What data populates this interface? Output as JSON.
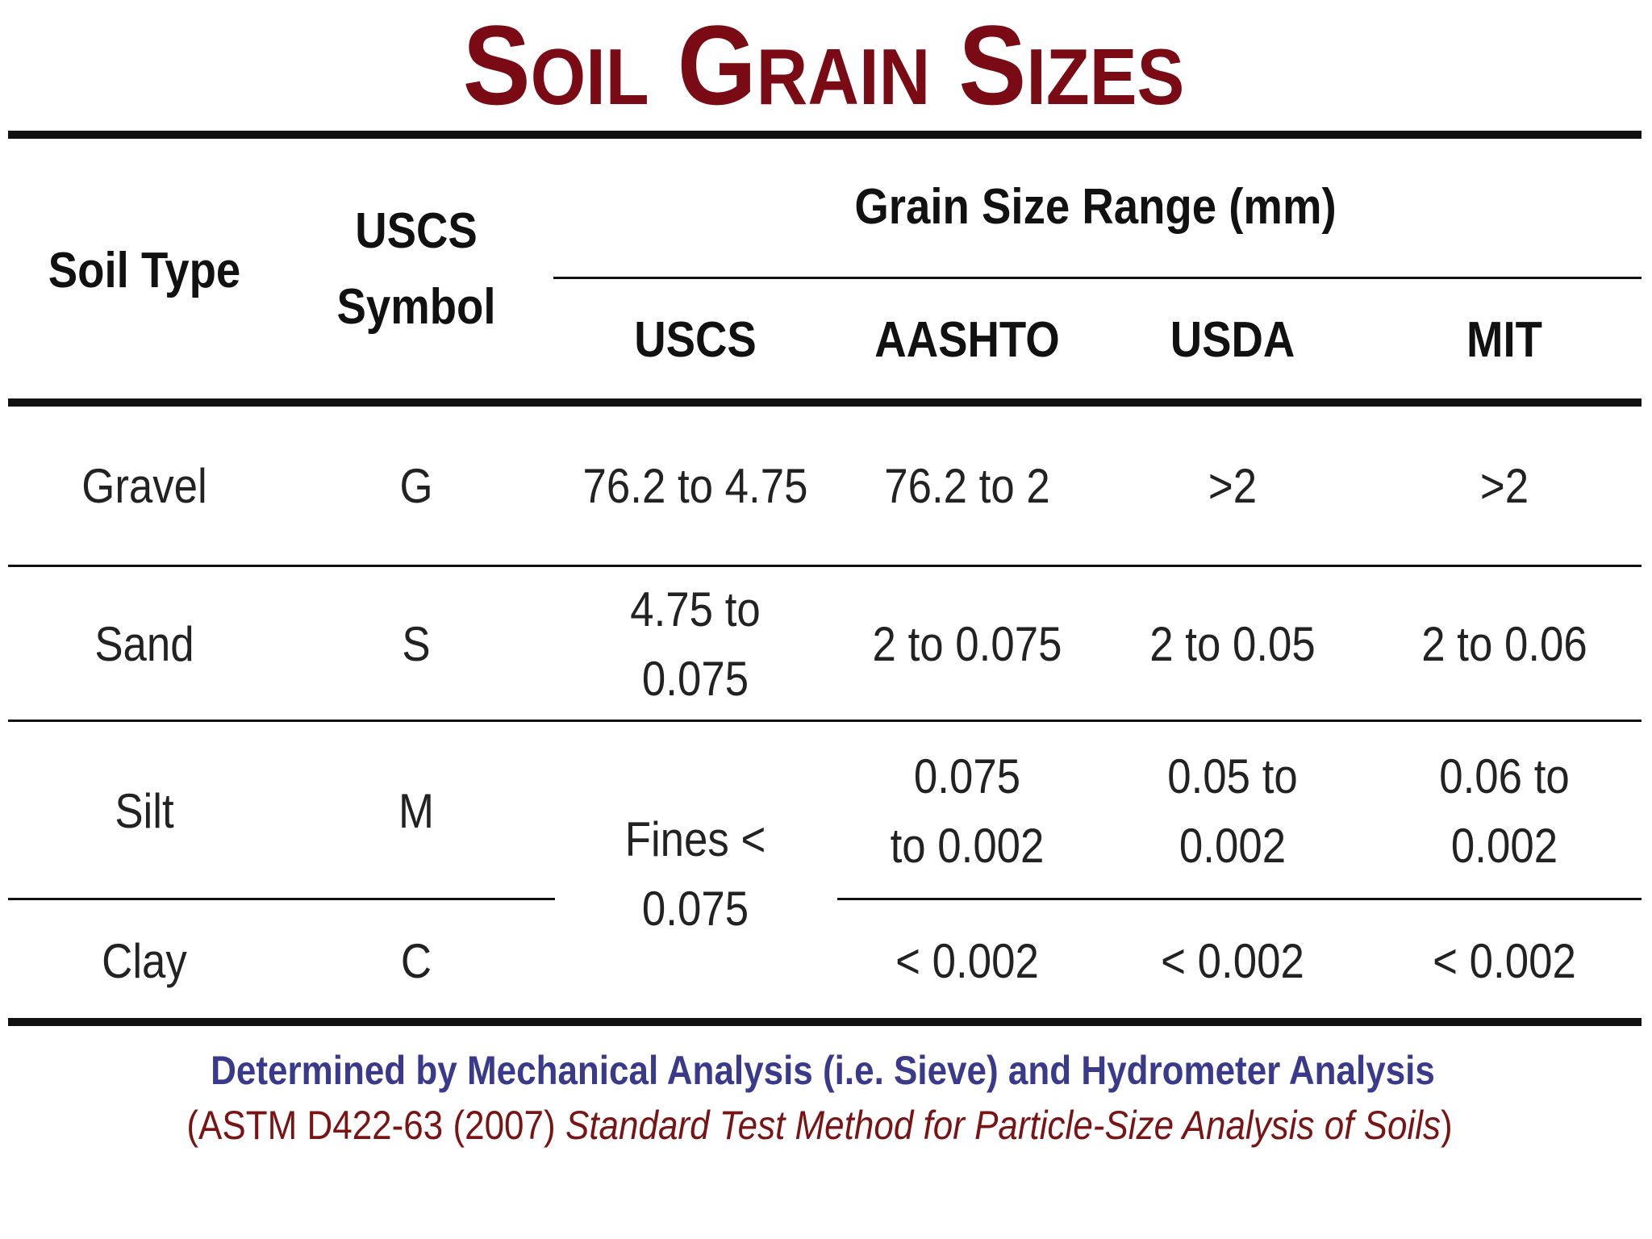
{
  "title": "Soil Grain Sizes",
  "table": {
    "header": {
      "soil_type": "Soil Type",
      "uscs_symbol": [
        "USCS",
        "Symbol"
      ],
      "grain_size_range": "Grain Size Range (mm)",
      "systems": [
        "USCS",
        "AASHTO",
        "USDA",
        "MIT"
      ]
    },
    "rows": [
      [
        "Gravel",
        "G",
        "76.2 to 4.75",
        "76.2 to 2",
        ">2",
        ">2"
      ],
      [
        "Sand",
        "S",
        [
          "4.75 to",
          "0.075"
        ],
        "2 to 0.075",
        "2 to 0.05",
        "2 to 0.06"
      ],
      [
        "Silt",
        "M",
        [
          "Fines <",
          "0.075"
        ],
        [
          "0.075",
          "to 0.002"
        ],
        [
          "0.05 to",
          "0.002"
        ],
        [
          "0.06 to",
          "0.002"
        ]
      ],
      [
        "Clay",
        "C",
        "< 0.002",
        "< 0.002",
        "< 0.002"
      ]
    ]
  },
  "footnote": {
    "line1": "Determined by Mechanical Analysis (i.e. Sieve) and Hydrometer Analysis",
    "line2": {
      "prefix": "(ASTM D422-63 (2007)",
      "title": "Standard Test Method for Particle-Size Analysis of Soils",
      "suffix": ")"
    }
  }
}
